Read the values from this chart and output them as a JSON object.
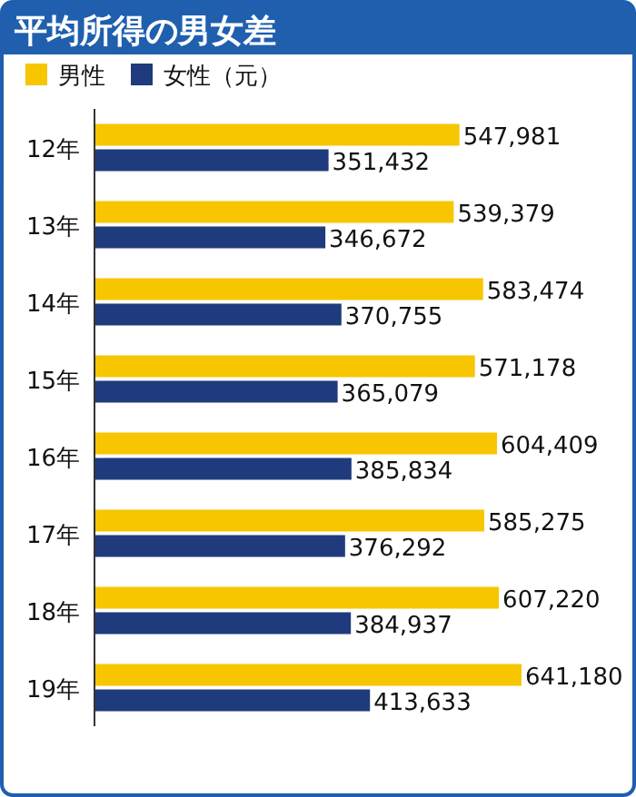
{
  "chart_data": {
    "type": "bar",
    "orientation": "horizontal",
    "title": "平均所得の男女差",
    "categories": [
      "12年",
      "13年",
      "14年",
      "15年",
      "16年",
      "17年",
      "18年",
      "19年"
    ],
    "series": [
      {
        "name": "男性",
        "color": "#f7c600",
        "values": [
          547981,
          539379,
          583474,
          571178,
          604409,
          585275,
          607220,
          641180
        ],
        "value_labels": [
          "547,981",
          "539,379",
          "583,474",
          "571,178",
          "604,409",
          "585,275",
          "607,220",
          "641,180"
        ]
      },
      {
        "name": "女性（元）",
        "color": "#1f3b7d",
        "values": [
          351432,
          346672,
          370755,
          365079,
          385834,
          376292,
          384937,
          413633
        ],
        "value_labels": [
          "351,432",
          "346,672",
          "370,755",
          "365,079",
          "385,834",
          "376,292",
          "384,937",
          "413,633"
        ]
      }
    ],
    "legend": "top left"
  }
}
